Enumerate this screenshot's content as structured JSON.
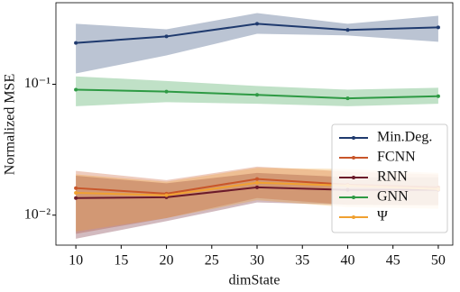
{
  "chart_data": {
    "type": "line",
    "xlabel": "dimState",
    "ylabel": "Normalized MSE",
    "x": [
      10,
      20,
      30,
      40,
      50
    ],
    "xlim": [
      7.8,
      51.6
    ],
    "xticks": [
      10,
      15,
      20,
      25,
      30,
      35,
      40,
      45,
      50
    ],
    "ylim": [
      0.0059,
      0.42
    ],
    "yscale": "log",
    "yticks": [
      {
        "value": 0.01,
        "label": "10⁻²"
      },
      {
        "value": 0.1,
        "label": "10⁻¹"
      }
    ],
    "legend": "lower right",
    "series": [
      {
        "name": "Min.Deg.",
        "color": "#1f3a6e",
        "values": [
          0.207,
          0.232,
          0.29,
          0.26,
          0.272
        ],
        "upper": [
          0.29,
          0.263,
          0.35,
          0.29,
          0.334
        ],
        "lower": [
          0.121,
          0.166,
          0.243,
          0.236,
          0.211
        ]
      },
      {
        "name": "FCNN",
        "color": "#c8562a",
        "values": [
          0.0161,
          0.0146,
          0.0189,
          0.0171,
          0.0163
        ],
        "upper": [
          0.0218,
          0.0185,
          0.0235,
          0.0215,
          0.0205
        ],
        "lower": [
          0.0072,
          0.0095,
          0.0135,
          0.012,
          0.0118
        ]
      },
      {
        "name": "RNN",
        "color": "#6b1a2a",
        "values": [
          0.0135,
          0.0137,
          0.0163,
          0.0156,
          0.0156
        ],
        "upper": [
          0.02,
          0.0175,
          0.021,
          0.0195,
          0.0195
        ],
        "lower": [
          0.0066,
          0.009,
          0.0125,
          0.012,
          0.012
        ]
      },
      {
        "name": "GNN",
        "color": "#2e9a44",
        "values": [
          0.091,
          0.088,
          0.083,
          0.078,
          0.081
        ],
        "upper": [
          0.115,
          0.106,
          0.097,
          0.091,
          0.094
        ],
        "lower": [
          0.068,
          0.073,
          0.071,
          0.068,
          0.071
        ]
      },
      {
        "name": "Ψ",
        "color": "#f0a030",
        "values": [
          0.0148,
          0.0142,
          0.0177,
          0.0168,
          0.0158
        ],
        "upper": [
          0.0205,
          0.018,
          0.023,
          0.0225,
          0.021
        ],
        "lower": [
          0.0075,
          0.0095,
          0.013,
          0.0115,
          0.0112
        ]
      }
    ]
  }
}
